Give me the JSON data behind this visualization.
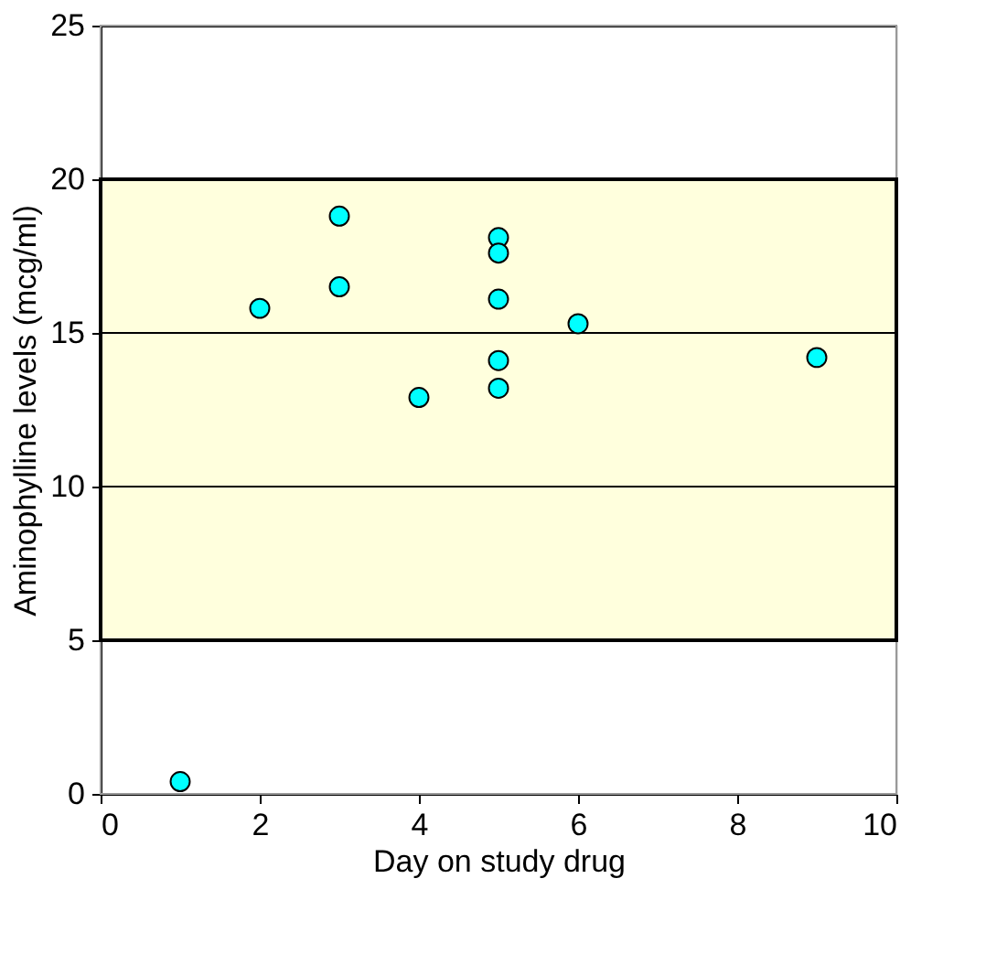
{
  "chart_data": {
    "type": "scatter",
    "xlabel": "Day on study drug",
    "ylabel": "Aminophylline levels (mcg/ml)",
    "x": [
      1,
      2,
      3,
      3,
      4,
      5,
      5,
      5,
      5,
      5,
      6,
      9
    ],
    "series": [
      {
        "color": "#00ffff",
        "values": [
          0.4,
          15.8,
          18.8,
          16.5,
          12.9,
          18.1,
          17.6,
          16.1,
          14.1,
          13.2,
          15.3,
          14.2
        ]
      }
    ],
    "xlim": [
      0,
      10
    ],
    "xticks": [
      0,
      2,
      4,
      6,
      8,
      10
    ],
    "ylim": [
      0,
      25
    ],
    "yticks": [
      0,
      5,
      10,
      15,
      20,
      25
    ],
    "bands": [
      {
        "axis": "y",
        "from": 5,
        "to": 20,
        "color": "#ffffdd"
      }
    ],
    "grid": "y",
    "marker": "circle"
  }
}
